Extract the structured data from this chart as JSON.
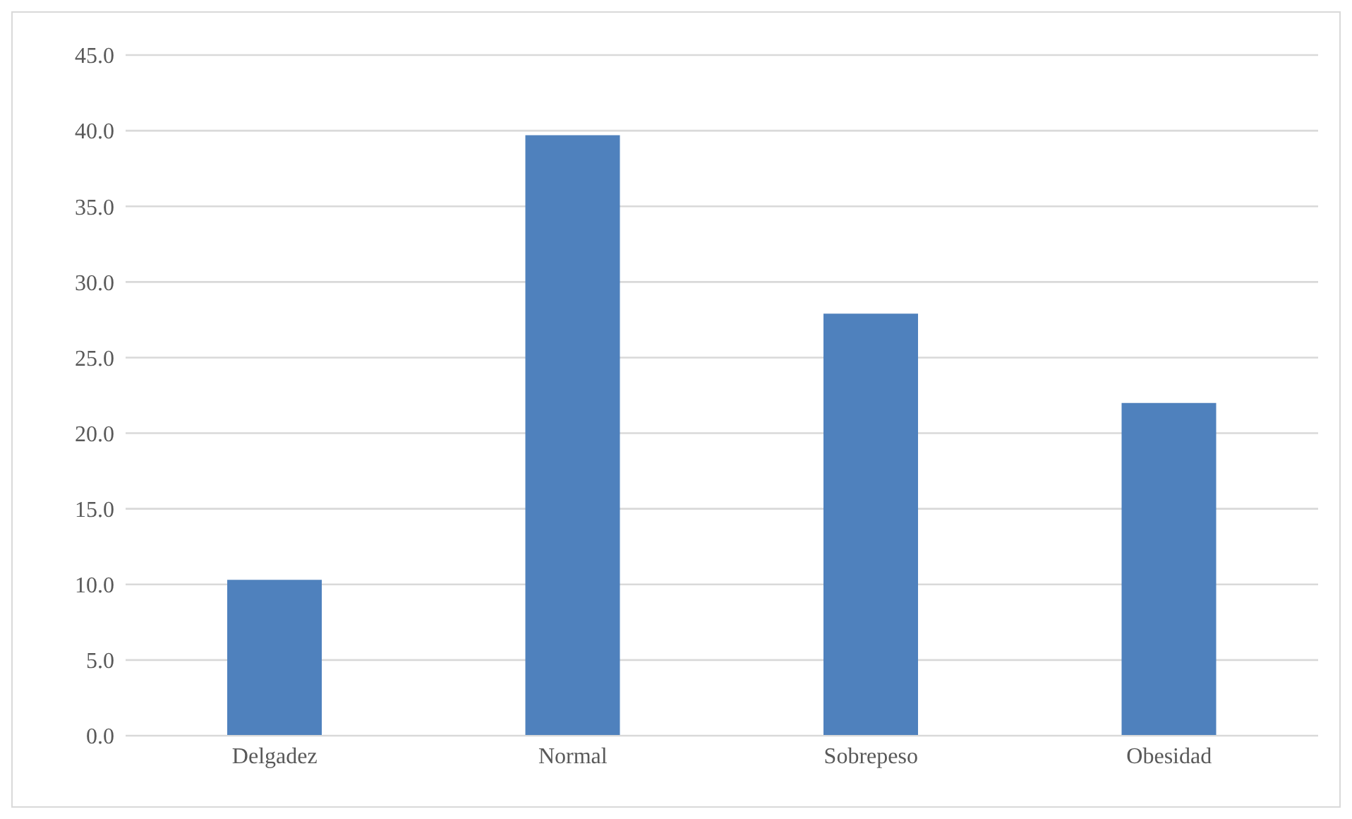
{
  "chart_data": {
    "type": "bar",
    "categories": [
      "Delgadez",
      "Normal",
      "Sobrepeso",
      "Obesidad"
    ],
    "values": [
      10.3,
      39.7,
      27.9,
      22.0
    ],
    "color": "#4f81bd",
    "ylim": [
      0,
      45
    ],
    "yticks": [
      {
        "value": 0,
        "label": "0.0"
      },
      {
        "value": 5,
        "label": "5.0"
      },
      {
        "value": 10,
        "label": "10.0"
      },
      {
        "value": 15,
        "label": "15.0"
      },
      {
        "value": 20,
        "label": "20.0"
      },
      {
        "value": 25,
        "label": "25.0"
      },
      {
        "value": 30,
        "label": "30.0"
      },
      {
        "value": 35,
        "label": "35.0"
      },
      {
        "value": 40,
        "label": "40.0"
      },
      {
        "value": 45,
        "label": "45.0"
      }
    ],
    "grid": "y",
    "legend": false
  }
}
